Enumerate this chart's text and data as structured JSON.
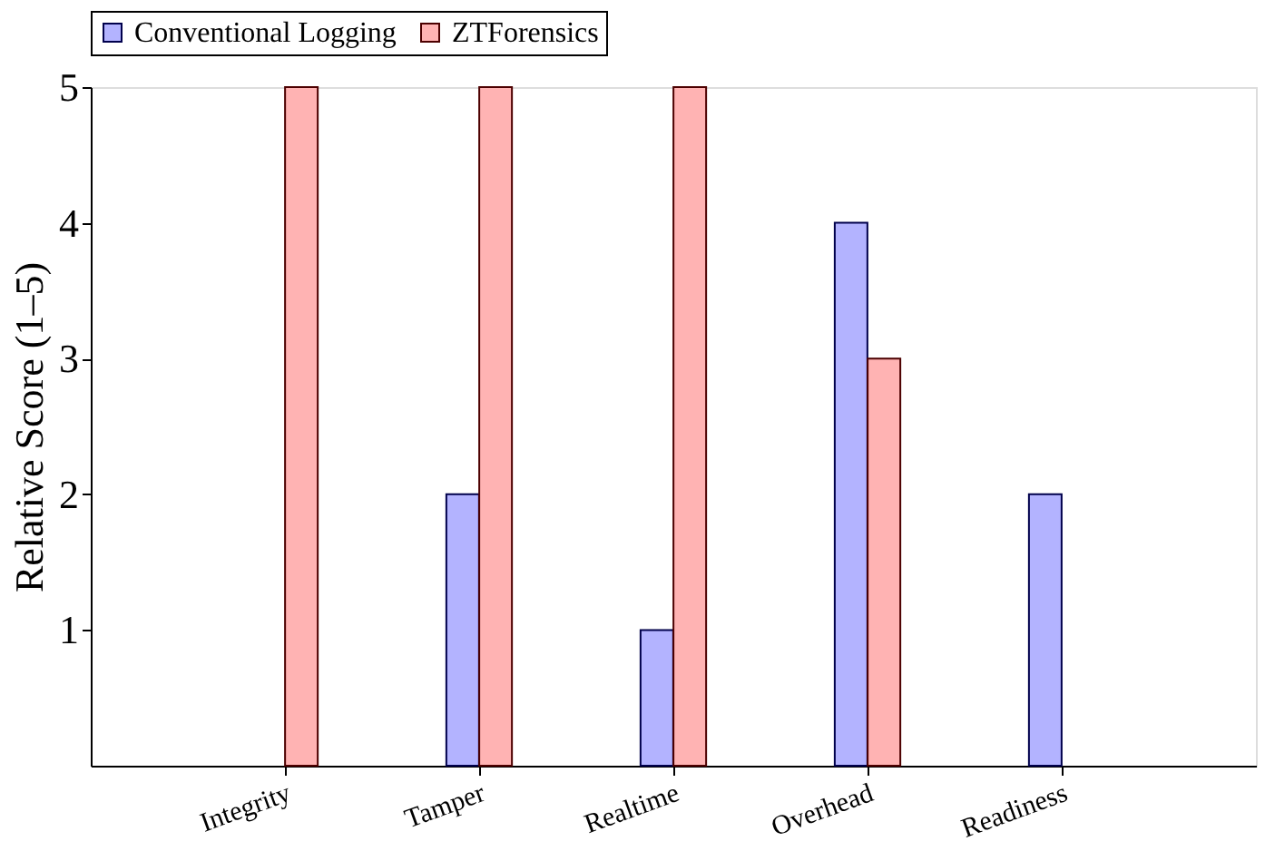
{
  "chart_data": {
    "type": "bar",
    "ylabel": "Relative Score (1–5)",
    "categories": [
      "Integrity",
      "Tamper",
      "Realtime",
      "Overhead",
      "Readiness"
    ],
    "series": [
      {
        "name": "Conventional Logging",
        "color": "#b3b3ff",
        "values": [
          null,
          2,
          1,
          4,
          2
        ]
      },
      {
        "name": "ZTForensics",
        "color": "#ffb3b3",
        "values": [
          5,
          5,
          5,
          3,
          null
        ]
      }
    ],
    "ylim": [
      0,
      5
    ],
    "yticks": [
      1,
      2,
      3,
      4,
      5
    ],
    "grid": false,
    "legend": "top"
  }
}
